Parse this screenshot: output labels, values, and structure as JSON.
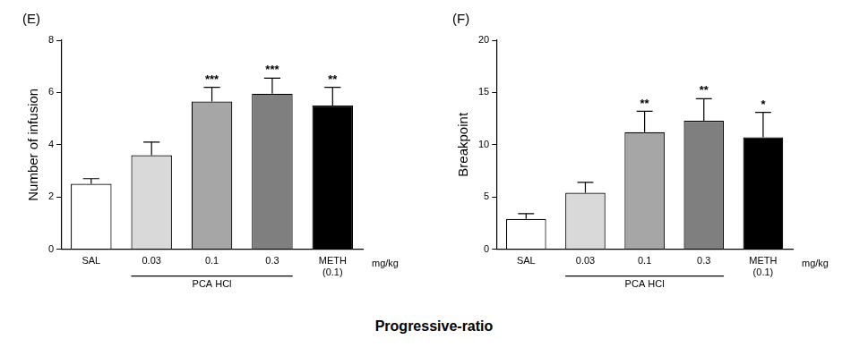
{
  "figure_title": "Progressive-ratio",
  "chart_data": [
    {
      "type": "bar",
      "title": "(E)",
      "y_label": "Number of infusion",
      "categories": [
        "SAL",
        "0.03",
        "0.1",
        "0.3",
        "METH (0.1)"
      ],
      "values": [
        2.5,
        3.6,
        5.65,
        5.95,
        5.5
      ],
      "errors": [
        0.2,
        0.5,
        0.55,
        0.6,
        0.7
      ],
      "significance": [
        null,
        null,
        "***",
        "***",
        "**"
      ],
      "colors": [
        "#ffffff",
        "#d9d9d9",
        "#a6a6a6",
        "#7f7f7f",
        "#000000"
      ],
      "ylim": [
        0,
        8
      ],
      "yticks": [
        0,
        2,
        4,
        6,
        8
      ],
      "grid": false,
      "group_label": {
        "text": "PCA HCl",
        "categories": [
          "0.03",
          "0.1",
          "0.3"
        ]
      },
      "unit_label": "mg/kg"
    },
    {
      "type": "bar",
      "title": "(F)",
      "y_label": "Breakpoint",
      "categories": [
        "SAL",
        "0.03",
        "0.1",
        "0.3",
        "METH (0.1)"
      ],
      "values": [
        2.9,
        5.4,
        11.2,
        12.3,
        10.7
      ],
      "errors": [
        0.5,
        1.0,
        2.0,
        2.1,
        2.4
      ],
      "significance": [
        null,
        null,
        "**",
        "**",
        "*"
      ],
      "colors": [
        "#ffffff",
        "#d9d9d9",
        "#a6a6a6",
        "#7f7f7f",
        "#000000"
      ],
      "ylim": [
        0,
        20
      ],
      "yticks": [
        0,
        5,
        10,
        15,
        20
      ],
      "grid": false,
      "group_label": {
        "text": "PCA HCl",
        "categories": [
          "0.03",
          "0.1",
          "0.3"
        ]
      },
      "unit_label": "mg/kg"
    }
  ]
}
